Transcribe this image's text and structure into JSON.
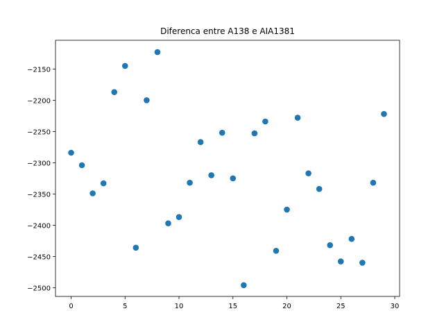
{
  "chart_data": {
    "type": "scatter",
    "title": "Diferenca entre A138 e AIA1381",
    "xlabel": "",
    "ylabel": "",
    "xlim": [
      -1.45,
      30.45
    ],
    "ylim": [
      -2514,
      -2104
    ],
    "xticks": [
      0,
      5,
      10,
      15,
      20,
      25,
      30
    ],
    "yticks": [
      -2500,
      -2450,
      -2400,
      -2350,
      -2300,
      -2250,
      -2200,
      -2150
    ],
    "ytick_labels": [
      "−2500",
      "−2450",
      "−2400",
      "−2350",
      "−2300",
      "−2250",
      "−2200",
      "−2150"
    ],
    "grid": false,
    "marker_color": "#1f77b4",
    "series": [
      {
        "x": [
          0,
          1,
          2,
          3,
          4,
          5,
          6,
          7,
          8,
          9,
          10,
          11,
          12,
          13,
          14,
          15,
          16,
          17,
          18,
          19,
          20,
          21,
          22,
          23,
          24,
          25,
          26,
          27,
          28,
          29
        ],
        "y": [
          -2284,
          -2304,
          -2349,
          -2333,
          -2187,
          -2145,
          -2436,
          -2200,
          -2123,
          -2397,
          -2387,
          -2332,
          -2267,
          -2320,
          -2252,
          -2325,
          -2496,
          -2253,
          -2234,
          -2441,
          -2375,
          -2228,
          -2317,
          -2342,
          -2432,
          -2458,
          -2422,
          -2460,
          -2332,
          -2222
        ]
      }
    ]
  }
}
